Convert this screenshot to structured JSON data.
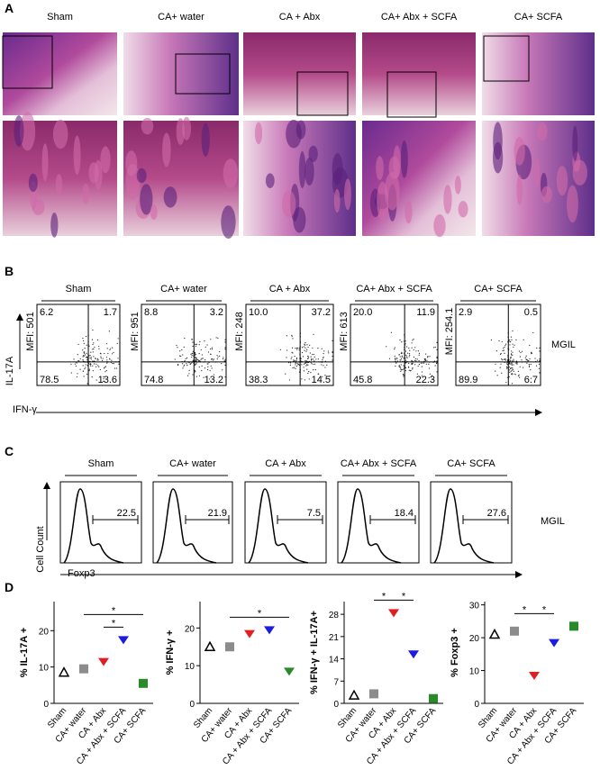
{
  "panel_a": {
    "label": "A",
    "groups": [
      "Sham",
      "CA+ water",
      "CA + Abx",
      "CA+ Abx + SCFA",
      "CA+ SCFA"
    ]
  },
  "panel_b": {
    "label": "B",
    "groups": [
      "Sham",
      "CA+ water",
      "CA + Abx",
      "CA+ Abx + SCFA",
      "CA+ SCFA"
    ],
    "plots": [
      {
        "mfi": "MFI: 501",
        "ul": "6.2",
        "ur": "1.7",
        "ll": "78.5",
        "lr": "13.6"
      },
      {
        "mfi": "MFI: 951",
        "ul": "8.8",
        "ur": "3.2",
        "ll": "74.8",
        "lr": "13.2"
      },
      {
        "mfi": "MFI: 248",
        "ul": "10.0",
        "ur": "37.2",
        "ll": "38.3",
        "lr": "14.5"
      },
      {
        "mfi": "MFI: 613",
        "ul": "20.0",
        "ur": "11.9",
        "ll": "45.8",
        "lr": "22.3"
      },
      {
        "mfi": "MFI: 254.1",
        "ul": "2.9",
        "ur": "0.5",
        "ll": "89.9",
        "lr": "6.7"
      }
    ],
    "y_label": "IL-17A",
    "x_label": "IFN-γ",
    "tissue": "MGIL"
  },
  "panel_c": {
    "label": "C",
    "groups": [
      "Sham",
      "CA+ water",
      "CA + Abx",
      "CA+ Abx + SCFA",
      "CA+ SCFA"
    ],
    "gates": [
      "22.5",
      "21.9",
      "7.5",
      "18.4",
      "27.6"
    ],
    "y_label": "Cell Count",
    "x_label": "Foxp3",
    "tissue": "MGIL"
  },
  "panel_d_label": "D",
  "chart_data": [
    {
      "type": "dot",
      "ylabel": "% IL-17A +",
      "categories": [
        "Sham",
        "CA+ water",
        "CA + Abx",
        "CA + Abx + SCFA",
        "CA+ SCFA"
      ],
      "values": [
        8.5,
        9.5,
        11.5,
        17.5,
        5.5
      ],
      "colors": [
        "#000000",
        "#8c8c8c",
        "#e02020",
        "#1c1cdc",
        "#2a8a2a"
      ],
      "markers": [
        "triangle-up-open",
        "square",
        "triangle-down",
        "triangle-down",
        "square"
      ],
      "ylim": [
        0,
        28
      ],
      "yticks": [
        0,
        10,
        20
      ],
      "annotations": [
        "*",
        "*"
      ]
    },
    {
      "type": "dot",
      "ylabel": "% IFN-γ +",
      "categories": [
        "Sham",
        "CA+ water",
        "CA + Abx",
        "CA + Abx + SCFA",
        "CA+ SCFA"
      ],
      "values": [
        15,
        15,
        18.5,
        19.5,
        8.5
      ],
      "colors": [
        "#000000",
        "#8c8c8c",
        "#e02020",
        "#1c1cdc",
        "#2a8a2a"
      ],
      "markers": [
        "triangle-up-open",
        "square",
        "triangle-down",
        "triangle-down",
        "triangle-down"
      ],
      "ylim": [
        0,
        27
      ],
      "yticks": [
        0,
        10,
        20
      ],
      "annotations": [
        "*"
      ]
    },
    {
      "type": "dot",
      "ylabel": "% IFN-γ + IL-17A+",
      "categories": [
        "Sham",
        "CA+ water",
        "CA + Abx",
        "CA + Abx + SCFA",
        "CA+ SCFA"
      ],
      "values": [
        2.5,
        3,
        28.5,
        15.5,
        1.5
      ],
      "colors": [
        "#000000",
        "#8c8c8c",
        "#e02020",
        "#1c1cdc",
        "#2a8a2a"
      ],
      "markers": [
        "triangle-up-open",
        "square",
        "triangle-down",
        "triangle-down",
        "square"
      ],
      "ylim": [
        0,
        32
      ],
      "yticks": [
        0,
        7,
        14,
        21,
        28
      ],
      "annotations": [
        "*",
        "*"
      ]
    },
    {
      "type": "dot",
      "ylabel": "% Foxp3 +",
      "categories": [
        "Sham",
        "CA+ water",
        "CA + Abx",
        "CA + Abx + SCFA",
        "CA+ SCFA"
      ],
      "values": [
        21,
        22,
        8.5,
        18.5,
        23.5
      ],
      "colors": [
        "#000000",
        "#8c8c8c",
        "#e02020",
        "#1c1cdc",
        "#2a8a2a"
      ],
      "markers": [
        "triangle-up-open",
        "square",
        "triangle-down",
        "triangle-down",
        "square"
      ],
      "ylim": [
        0,
        31
      ],
      "yticks": [
        0,
        10,
        20,
        30
      ],
      "annotations": [
        "*",
        "*"
      ]
    }
  ]
}
